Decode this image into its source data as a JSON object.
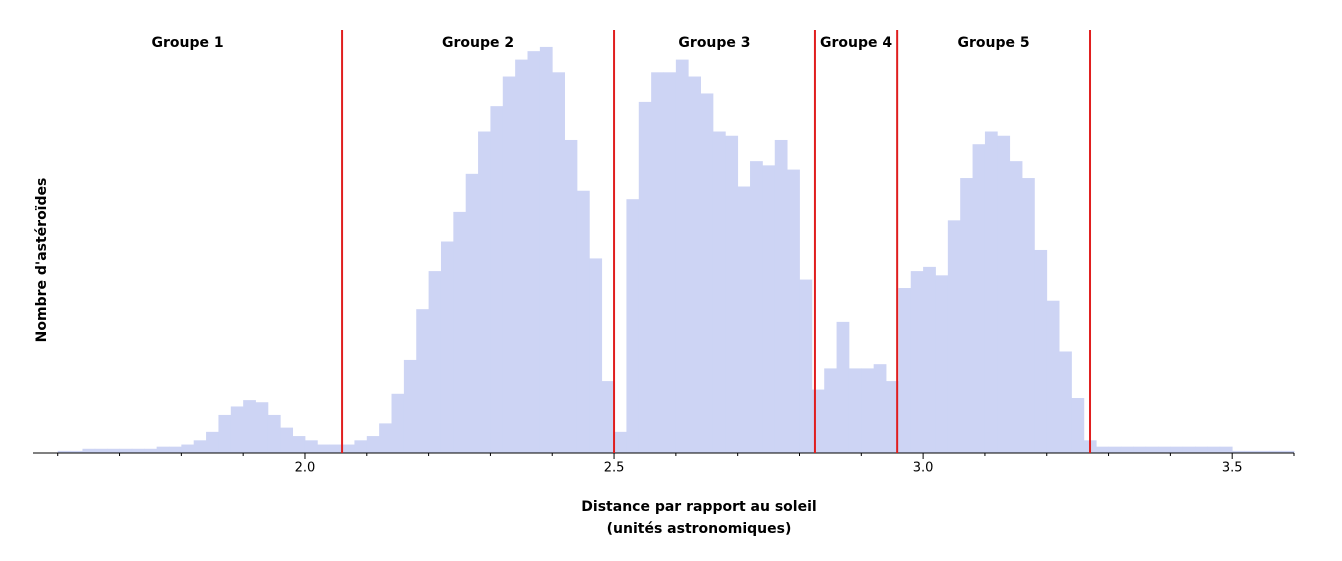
{
  "chart_data": {
    "type": "histogram",
    "xlabel": [
      "Distance par rapport au soleil",
      "(unités astronomiques)"
    ],
    "ylabel": "Nombre d'astéroïdes",
    "color": "#cdd4f4",
    "boundary_color": "#e01e1e",
    "groups": [
      "Groupe 1",
      "Groupe 2",
      "Groupe 3",
      "Groupe 4",
      "Groupe 5"
    ],
    "boundaries": [
      2.06,
      2.5,
      2.825,
      2.958,
      3.27
    ],
    "bins": [
      1.6,
      1.62,
      1.64,
      1.66,
      1.68,
      1.7,
      1.72,
      1.74,
      1.76,
      1.78,
      1.8,
      1.82,
      1.84,
      1.86,
      1.88,
      1.9,
      1.92,
      1.94,
      1.96,
      1.98,
      2.0,
      2.02,
      2.04,
      2.06,
      2.08,
      2.1,
      2.12,
      2.14,
      2.16,
      2.18,
      2.2,
      2.22,
      2.24,
      2.26,
      2.28,
      2.3,
      2.32,
      2.34,
      2.36,
      2.38,
      2.4,
      2.42,
      2.44,
      2.46,
      2.48,
      2.5,
      2.52,
      2.54,
      2.56,
      2.58,
      2.6,
      2.62,
      2.64,
      2.66,
      2.68,
      2.7,
      2.72,
      2.74,
      2.76,
      2.78,
      2.8,
      2.82,
      2.84,
      2.86,
      2.88,
      2.9,
      2.92,
      2.94,
      2.96,
      2.98,
      3.0,
      3.02,
      3.04,
      3.06,
      3.08,
      3.1,
      3.12,
      3.14,
      3.16,
      3.18,
      3.2,
      3.22,
      3.24,
      3.26,
      3.28,
      3.3,
      3.32,
      3.34,
      3.36,
      3.38,
      3.4,
      3.42,
      3.44,
      3.46,
      3.48,
      3.5,
      3.52,
      3.54,
      3.56,
      3.58,
      3.6
    ],
    "values": [
      0.5,
      0.5,
      1,
      1,
      1,
      1,
      1,
      1,
      1.5,
      1.5,
      2,
      3,
      5,
      9,
      11,
      12.5,
      12,
      9,
      6,
      4,
      3,
      2,
      2,
      2,
      3,
      4,
      7,
      14,
      22,
      34,
      43,
      50,
      57,
      66,
      76,
      82,
      89,
      93,
      95,
      96,
      90,
      74,
      62,
      46,
      17,
      5,
      60,
      83,
      90,
      90,
      93,
      89,
      85,
      76,
      75,
      63,
      69,
      68,
      74,
      67,
      41,
      15,
      20,
      31,
      20,
      20,
      21,
      17,
      39,
      43,
      44,
      42,
      55,
      65,
      73,
      76,
      75,
      69,
      65,
      48,
      36,
      24,
      13,
      3,
      1.5,
      1.5,
      1.5,
      1.5,
      1.5,
      1.5,
      1.5,
      1.5,
      1.5,
      1.5,
      1.5,
      0.5,
      0.5,
      0.5,
      0.5,
      0.5
    ],
    "xlim": [
      1.56,
      3.6
    ],
    "ylim": [
      0,
      100
    ],
    "xticks": [
      {
        "value": 2,
        "label": "2.0"
      },
      {
        "value": 2.5,
        "label": "2.5"
      },
      {
        "value": 3,
        "label": "3.0"
      },
      {
        "value": 3.5,
        "label": "3.5"
      }
    ],
    "xminorticks": [
      1.6,
      1.7,
      1.8,
      1.9,
      2.1,
      2.2,
      2.3,
      2.4,
      2.6,
      2.7,
      2.8,
      2.9,
      3.1,
      3.2,
      3.3,
      3.4,
      3.6
    ]
  }
}
